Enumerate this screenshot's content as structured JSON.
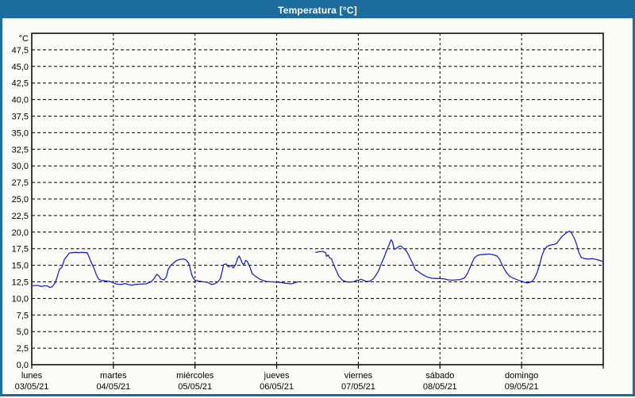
{
  "window": {
    "title": "Temperatura [°C]",
    "titlebar_color": "#1d6c9e",
    "background": "#fcfdf9"
  },
  "chart_data": {
    "type": "line",
    "title": "Temperatura [°C]",
    "grid": "dashed",
    "legend_position": "none",
    "y_axis": {
      "unit": "°C",
      "min": 0,
      "max": 50,
      "tick_step": 2.5,
      "tick_labels": [
        "0,0",
        "2,5",
        "5,0",
        "7,5",
        "10,0",
        "12,5",
        "15,0",
        "17,5",
        "20,0",
        "22,5",
        "25,0",
        "27,5",
        "30,0",
        "32,5",
        "35,0",
        "37,5",
        "40,0",
        "42,5",
        "45,0",
        "47,5"
      ]
    },
    "x_axis": {
      "span_days": 7,
      "days": [
        {
          "weekday": "lunes",
          "date": "03/05/21"
        },
        {
          "weekday": "martes",
          "date": "04/05/21"
        },
        {
          "weekday": "miércoles",
          "date": "05/05/21"
        },
        {
          "weekday": "jueves",
          "date": "06/05/21"
        },
        {
          "weekday": "viernes",
          "date": "07/05/21"
        },
        {
          "weekday": "sábado",
          "date": "08/05/21"
        },
        {
          "weekday": "domingo",
          "date": "09/05/21"
        }
      ]
    },
    "series": [
      {
        "name": "Temperatura",
        "color": "#2121c8",
        "note": "x = days since lunes 03/05/21 00:00, y = °C; gap in data thursday morning",
        "segments": [
          [
            [
              0.0,
              11.9
            ],
            [
              0.04,
              11.95
            ],
            [
              0.08,
              11.95
            ],
            [
              0.12,
              11.8
            ],
            [
              0.15,
              11.9
            ],
            [
              0.19,
              11.9
            ],
            [
              0.22,
              11.65
            ],
            [
              0.25,
              11.75
            ],
            [
              0.29,
              12.4
            ],
            [
              0.31,
              13.2
            ],
            [
              0.34,
              14.4
            ],
            [
              0.37,
              14.7
            ],
            [
              0.4,
              15.9
            ],
            [
              0.43,
              16.35
            ],
            [
              0.46,
              16.85
            ],
            [
              0.5,
              16.9
            ],
            [
              0.54,
              16.95
            ],
            [
              0.58,
              16.9
            ],
            [
              0.62,
              16.95
            ],
            [
              0.66,
              16.9
            ],
            [
              0.68,
              16.9
            ],
            [
              0.7,
              16.3
            ],
            [
              0.73,
              15.4
            ],
            [
              0.76,
              14.6
            ],
            [
              0.79,
              13.6
            ],
            [
              0.82,
              12.9
            ],
            [
              0.85,
              12.7
            ],
            [
              0.89,
              12.65
            ],
            [
              0.93,
              12.6
            ],
            [
              0.97,
              12.5
            ],
            [
              1.0,
              12.35
            ],
            [
              1.04,
              12.15
            ],
            [
              1.1,
              12.1
            ],
            [
              1.14,
              12.25
            ],
            [
              1.18,
              12.1
            ],
            [
              1.22,
              12.0
            ],
            [
              1.27,
              12.1
            ],
            [
              1.33,
              12.15
            ],
            [
              1.4,
              12.2
            ],
            [
              1.46,
              12.5
            ],
            [
              1.5,
              13.0
            ],
            [
              1.53,
              13.65
            ],
            [
              1.56,
              13.35
            ],
            [
              1.58,
              12.95
            ],
            [
              1.62,
              12.8
            ],
            [
              1.65,
              13.3
            ],
            [
              1.67,
              14.35
            ],
            [
              1.7,
              14.95
            ],
            [
              1.74,
              15.4
            ],
            [
              1.78,
              15.75
            ],
            [
              1.82,
              15.9
            ],
            [
              1.86,
              15.95
            ],
            [
              1.89,
              15.8
            ],
            [
              1.92,
              15.35
            ],
            [
              1.94,
              14.55
            ],
            [
              1.96,
              13.55
            ],
            [
              1.98,
              13.0
            ],
            [
              2.0,
              12.75
            ],
            [
              2.05,
              12.6
            ],
            [
              2.1,
              12.5
            ],
            [
              2.15,
              12.45
            ],
            [
              2.2,
              12.1
            ],
            [
              2.24,
              12.2
            ],
            [
              2.28,
              12.5
            ],
            [
              2.31,
              13.0
            ],
            [
              2.33,
              14.0
            ],
            [
              2.35,
              15.1
            ],
            [
              2.38,
              15.2
            ],
            [
              2.41,
              14.75
            ],
            [
              2.44,
              15.0
            ],
            [
              2.47,
              14.6
            ],
            [
              2.5,
              15.2
            ],
            [
              2.52,
              16.0
            ],
            [
              2.54,
              16.4
            ],
            [
              2.56,
              15.9
            ],
            [
              2.58,
              15.3
            ],
            [
              2.6,
              15.1
            ],
            [
              2.62,
              15.75
            ],
            [
              2.64,
              15.6
            ],
            [
              2.67,
              14.8
            ],
            [
              2.7,
              13.75
            ],
            [
              2.74,
              13.35
            ],
            [
              2.78,
              13.0
            ],
            [
              2.83,
              12.7
            ],
            [
              2.88,
              12.55
            ],
            [
              2.94,
              12.5
            ],
            [
              3.0,
              12.45
            ],
            [
              3.05,
              12.4
            ],
            [
              3.1,
              12.3
            ],
            [
              3.14,
              12.25
            ],
            [
              3.18,
              12.2
            ],
            [
              3.22,
              12.35
            ],
            [
              3.26,
              12.5
            ]
          ],
          [
            [
              3.48,
              16.95
            ],
            [
              3.52,
              17.05
            ],
            [
              3.56,
              17.1
            ],
            [
              3.6,
              16.9
            ],
            [
              3.61,
              16.35
            ],
            [
              3.63,
              16.55
            ],
            [
              3.65,
              16.1
            ],
            [
              3.67,
              16.0
            ],
            [
              3.7,
              15.0
            ],
            [
              3.73,
              14.2
            ],
            [
              3.76,
              13.4
            ],
            [
              3.8,
              12.8
            ],
            [
              3.85,
              12.5
            ],
            [
              3.9,
              12.45
            ],
            [
              3.95,
              12.55
            ],
            [
              3.98,
              12.75
            ],
            [
              4.0,
              12.7
            ],
            [
              4.03,
              12.9
            ],
            [
              4.06,
              12.75
            ],
            [
              4.1,
              12.55
            ],
            [
              4.14,
              12.6
            ],
            [
              4.18,
              12.9
            ],
            [
              4.21,
              13.4
            ],
            [
              4.25,
              14.2
            ],
            [
              4.28,
              15.2
            ],
            [
              4.31,
              16.0
            ],
            [
              4.34,
              17.0
            ],
            [
              4.37,
              17.9
            ],
            [
              4.4,
              18.85
            ],
            [
              4.42,
              18.5
            ],
            [
              4.44,
              17.4
            ],
            [
              4.47,
              17.6
            ],
            [
              4.5,
              17.85
            ],
            [
              4.52,
              17.9
            ],
            [
              4.55,
              17.6
            ],
            [
              4.58,
              17.3
            ],
            [
              4.61,
              16.7
            ],
            [
              4.64,
              15.9
            ],
            [
              4.67,
              15.2
            ],
            [
              4.7,
              14.3
            ],
            [
              4.73,
              14.1
            ],
            [
              4.76,
              13.8
            ],
            [
              4.8,
              13.5
            ],
            [
              4.85,
              13.2
            ],
            [
              4.9,
              13.05
            ],
            [
              4.95,
              13.0
            ],
            [
              5.0,
              13.0
            ],
            [
              5.05,
              12.95
            ],
            [
              5.1,
              12.8
            ],
            [
              5.15,
              12.75
            ],
            [
              5.2,
              12.8
            ],
            [
              5.25,
              12.85
            ],
            [
              5.3,
              13.1
            ],
            [
              5.33,
              13.6
            ],
            [
              5.36,
              14.4
            ],
            [
              5.39,
              15.3
            ],
            [
              5.42,
              16.1
            ],
            [
              5.46,
              16.5
            ],
            [
              5.5,
              16.6
            ],
            [
              5.55,
              16.65
            ],
            [
              5.6,
              16.7
            ],
            [
              5.65,
              16.6
            ],
            [
              5.7,
              16.4
            ],
            [
              5.73,
              15.9
            ],
            [
              5.76,
              15.1
            ],
            [
              5.79,
              14.4
            ],
            [
              5.82,
              13.8
            ],
            [
              5.85,
              13.4
            ],
            [
              5.89,
              13.1
            ],
            [
              5.93,
              12.9
            ],
            [
              5.97,
              12.7
            ],
            [
              6.0,
              12.6
            ],
            [
              6.03,
              12.45
            ],
            [
              6.07,
              12.35
            ],
            [
              6.1,
              12.4
            ],
            [
              6.13,
              12.6
            ],
            [
              6.16,
              13.1
            ],
            [
              6.19,
              13.9
            ],
            [
              6.22,
              15.1
            ],
            [
              6.25,
              16.5
            ],
            [
              6.28,
              17.4
            ],
            [
              6.31,
              17.8
            ],
            [
              6.34,
              18.0
            ],
            [
              6.37,
              18.1
            ],
            [
              6.4,
              18.15
            ],
            [
              6.43,
              18.3
            ],
            [
              6.46,
              18.8
            ],
            [
              6.49,
              19.3
            ],
            [
              6.53,
              19.7
            ],
            [
              6.56,
              20.0
            ],
            [
              6.59,
              20.15
            ],
            [
              6.61,
              19.9
            ],
            [
              6.64,
              19.2
            ],
            [
              6.67,
              18.3
            ],
            [
              6.7,
              17.0
            ],
            [
              6.73,
              16.2
            ],
            [
              6.77,
              16.0
            ],
            [
              6.82,
              15.95
            ],
            [
              6.87,
              16.0
            ],
            [
              6.91,
              15.9
            ],
            [
              6.95,
              15.75
            ],
            [
              7.0,
              15.55
            ]
          ]
        ]
      }
    ]
  }
}
